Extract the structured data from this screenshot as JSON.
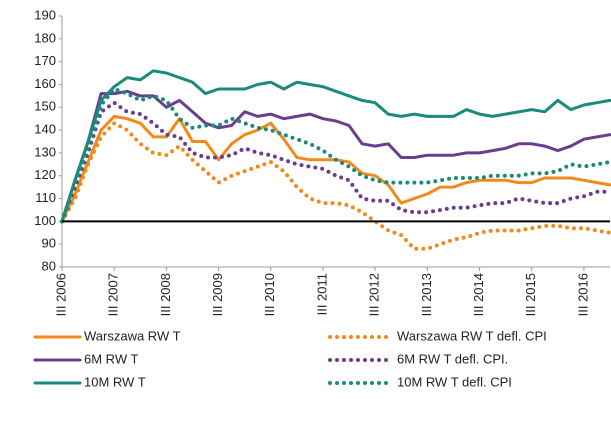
{
  "chart_data": {
    "type": "line",
    "categories": [
      "III 2006",
      null,
      null,
      null,
      "III 2007",
      null,
      null,
      null,
      "III 2008",
      null,
      null,
      null,
      "III 2009",
      null,
      null,
      null,
      "III 2010",
      null,
      null,
      null,
      "III 2011",
      null,
      null,
      null,
      "III 2012",
      null,
      null,
      null,
      "III 2013",
      null,
      null,
      null,
      "III 2014",
      null,
      null,
      null,
      "III 2015",
      null,
      null,
      null,
      "III 2016",
      null,
      null
    ],
    "ylim": [
      80,
      190
    ],
    "yticks": [
      80,
      90,
      100,
      110,
      120,
      130,
      140,
      150,
      160,
      170,
      180,
      190
    ],
    "reference_line": 100,
    "grid": false,
    "legend": "bottom",
    "series": [
      {
        "name": "Warszawa RW T",
        "color": "#f28a1a",
        "style": "solid",
        "values": [
          100,
          112,
          126,
          140,
          146,
          145,
          143,
          137,
          137,
          145,
          135,
          135,
          127,
          134,
          138,
          140,
          143,
          136,
          128,
          127,
          127,
          127,
          126,
          121,
          120,
          116,
          108,
          110,
          112,
          115,
          115,
          117,
          118,
          118,
          118,
          117,
          117,
          119,
          119,
          119,
          118,
          117,
          116
        ]
      },
      {
        "name": "Warszawa RW T defl. CPI",
        "color": "#f28a1a",
        "style": "dotted",
        "values": [
          100,
          110,
          125,
          137,
          143,
          140,
          134,
          130,
          129,
          133,
          127,
          122,
          117,
          120,
          122,
          124,
          126,
          122,
          115,
          110,
          108,
          108,
          107,
          104,
          100,
          96,
          94,
          88,
          88,
          90,
          92,
          93,
          95,
          96,
          96,
          96,
          97,
          98,
          98,
          97,
          97,
          96,
          95
        ]
      },
      {
        "name": "6M RW T",
        "color": "#6b3d8f",
        "style": "solid",
        "values": [
          100,
          118,
          135,
          156,
          156,
          157,
          155,
          155,
          150,
          153,
          148,
          143,
          141,
          142,
          148,
          146,
          147,
          145,
          146,
          147,
          145,
          144,
          142,
          134,
          133,
          134,
          128,
          128,
          129,
          129,
          129,
          130,
          130,
          131,
          132,
          134,
          134,
          133,
          131,
          133,
          136,
          137,
          138
        ]
      },
      {
        "name": "6M RW T defl. CPI.",
        "color": "#6b3d8f",
        "style": "dotted",
        "values": [
          100,
          115,
          130,
          148,
          152,
          148,
          147,
          143,
          138,
          137,
          130,
          128,
          128,
          129,
          132,
          130,
          129,
          127,
          125,
          124,
          123,
          120,
          118,
          110,
          109,
          109,
          105,
          104,
          104,
          105,
          106,
          106,
          107,
          108,
          108,
          110,
          109,
          108,
          108,
          110,
          111,
          113,
          113
        ]
      },
      {
        "name": "10M RW T",
        "color": "#1a8a7a",
        "style": "solid",
        "values": [
          100,
          118,
          135,
          153,
          159,
          163,
          162,
          166,
          165,
          163,
          161,
          156,
          158,
          158,
          158,
          160,
          161,
          158,
          161,
          160,
          159,
          157,
          155,
          153,
          152,
          147,
          146,
          147,
          146,
          146,
          146,
          149,
          147,
          146,
          147,
          148,
          149,
          148,
          153,
          149,
          151,
          152,
          153
        ]
      },
      {
        "name": "10M RW T defl. CPI",
        "color": "#1a8a7a",
        "style": "dotted",
        "values": [
          100,
          117,
          132,
          151,
          158,
          156,
          153,
          155,
          153,
          145,
          141,
          142,
          142,
          145,
          143,
          141,
          140,
          138,
          136,
          134,
          131,
          127,
          124,
          120,
          118,
          117,
          117,
          117,
          117,
          118,
          119,
          119,
          119,
          120,
          120,
          120,
          121,
          121,
          122,
          125,
          124,
          125,
          126
        ]
      }
    ]
  }
}
